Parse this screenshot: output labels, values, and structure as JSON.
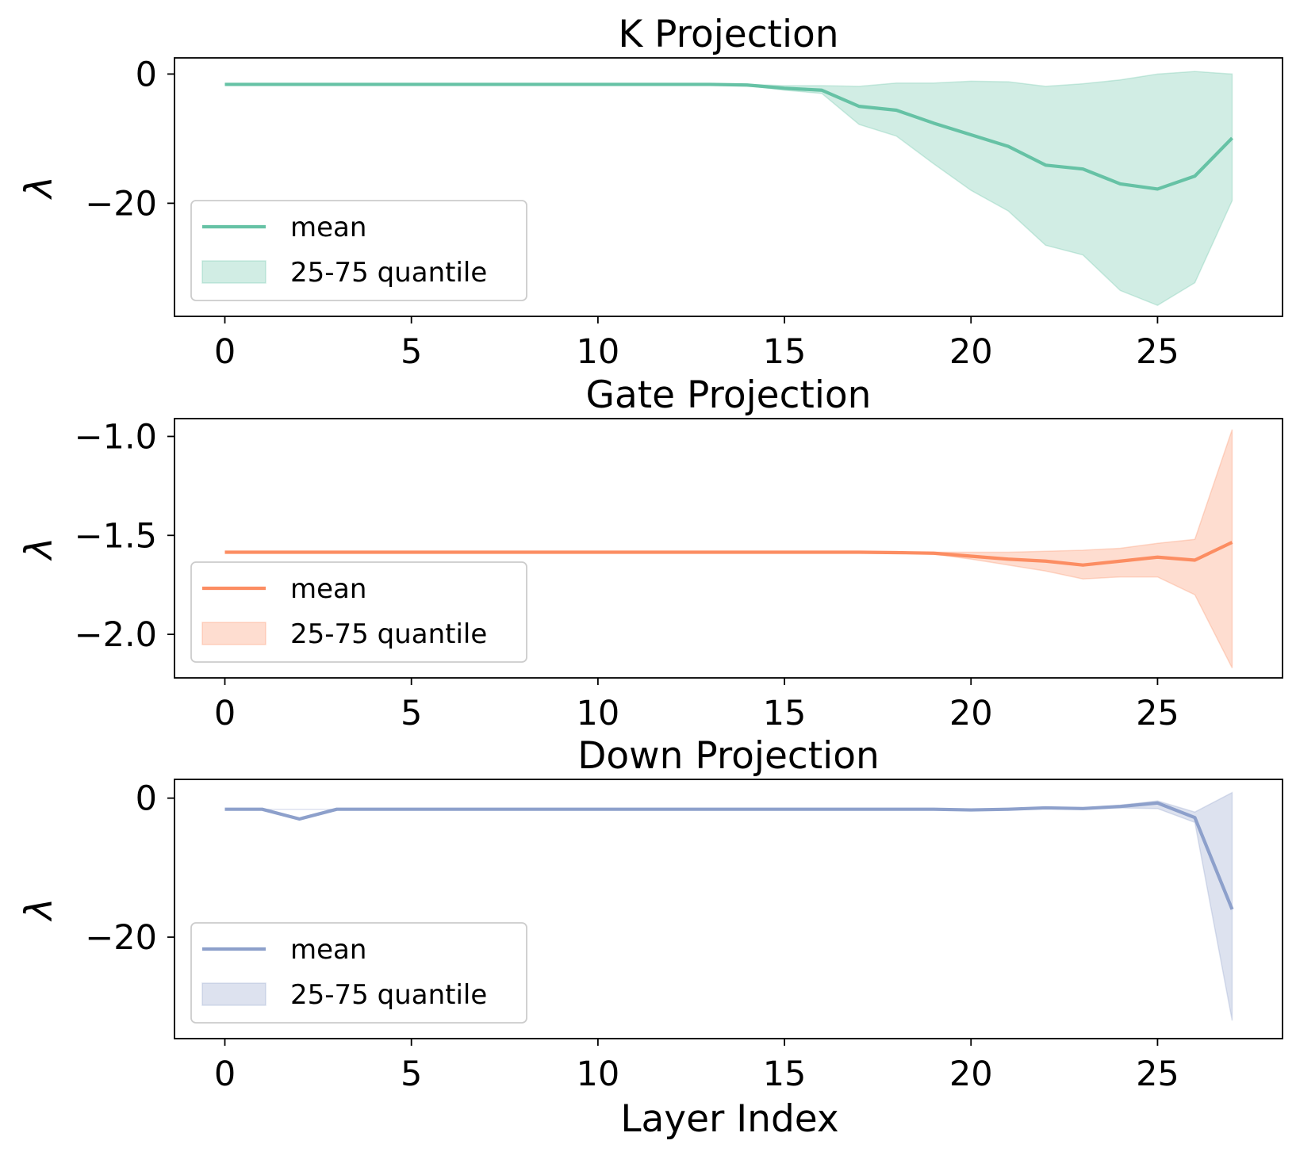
{
  "figure": {
    "xlabel": "Layer Index"
  },
  "chart_data": [
    {
      "type": "line",
      "title": "K Projection",
      "xlabel": "",
      "ylabel": "λ",
      "xlim": [
        -1.35,
        28.35
      ],
      "ylim": [
        -37.5,
        2.5
      ],
      "xticks": [
        0,
        5,
        10,
        15,
        20,
        25
      ],
      "yticks": [
        0,
        -20
      ],
      "ytick_labels": [
        "0",
        "−20"
      ],
      "color": "#66c2a5",
      "x": [
        0,
        1,
        2,
        3,
        4,
        5,
        6,
        7,
        8,
        9,
        10,
        11,
        12,
        13,
        14,
        15,
        16,
        17,
        18,
        19,
        20,
        21,
        22,
        23,
        24,
        25,
        26,
        27
      ],
      "series": [
        {
          "name": "mean",
          "values": [
            -1.6,
            -1.6,
            -1.6,
            -1.6,
            -1.6,
            -1.6,
            -1.6,
            -1.6,
            -1.6,
            -1.6,
            -1.6,
            -1.6,
            -1.6,
            -1.6,
            -1.7,
            -2.2,
            -2.5,
            -5.0,
            -5.6,
            -7.6,
            -9.4,
            -11.2,
            -14.1,
            -14.7,
            -17.0,
            -17.8,
            -15.8,
            -9.9
          ]
        },
        {
          "name": "25-75 quantile",
          "kind": "band",
          "lower": [
            -1.6,
            -1.6,
            -1.6,
            -1.6,
            -1.6,
            -1.6,
            -1.6,
            -1.6,
            -1.6,
            -1.6,
            -1.6,
            -1.6,
            -1.6,
            -1.6,
            -1.8,
            -2.5,
            -3.0,
            -7.8,
            -9.6,
            -13.9,
            -18.0,
            -21.2,
            -26.5,
            -28.0,
            -33.5,
            -35.8,
            -32.3,
            -19.6
          ],
          "upper": [
            -1.6,
            -1.6,
            -1.6,
            -1.6,
            -1.6,
            -1.6,
            -1.6,
            -1.6,
            -1.6,
            -1.6,
            -1.6,
            -1.6,
            -1.6,
            -1.6,
            -1.6,
            -1.8,
            -1.8,
            -1.9,
            -1.4,
            -1.4,
            -1.1,
            -1.2,
            -1.9,
            -1.5,
            -0.9,
            0.0,
            0.4,
            0.0
          ]
        }
      ],
      "legend": {
        "position": "lower-left",
        "entries": [
          "mean",
          "25-75 quantile"
        ]
      }
    },
    {
      "type": "line",
      "title": "Gate Projection",
      "xlabel": "",
      "ylabel": "λ",
      "xlim": [
        -1.35,
        28.35
      ],
      "ylim": [
        -2.22,
        -0.91
      ],
      "xticks": [
        0,
        5,
        10,
        15,
        20,
        25
      ],
      "yticks": [
        -1.0,
        -1.5,
        -2.0
      ],
      "ytick_labels": [
        "−1.0",
        "−1.5",
        "−2.0"
      ],
      "color": "#fc8d62",
      "x": [
        0,
        1,
        2,
        3,
        4,
        5,
        6,
        7,
        8,
        9,
        10,
        11,
        12,
        13,
        14,
        15,
        16,
        17,
        18,
        19,
        20,
        21,
        22,
        23,
        24,
        25,
        26,
        27
      ],
      "series": [
        {
          "name": "mean",
          "values": [
            -1.585,
            -1.585,
            -1.585,
            -1.585,
            -1.585,
            -1.585,
            -1.585,
            -1.585,
            -1.585,
            -1.585,
            -1.585,
            -1.585,
            -1.585,
            -1.585,
            -1.585,
            -1.585,
            -1.585,
            -1.585,
            -1.587,
            -1.59,
            -1.605,
            -1.62,
            -1.63,
            -1.65,
            -1.63,
            -1.61,
            -1.625,
            -1.535
          ]
        },
        {
          "name": "25-75 quantile",
          "kind": "band",
          "lower": [
            -1.585,
            -1.585,
            -1.585,
            -1.585,
            -1.585,
            -1.585,
            -1.585,
            -1.585,
            -1.585,
            -1.585,
            -1.585,
            -1.585,
            -1.585,
            -1.585,
            -1.585,
            -1.585,
            -1.585,
            -1.585,
            -1.59,
            -1.595,
            -1.62,
            -1.65,
            -1.68,
            -1.72,
            -1.71,
            -1.71,
            -1.8,
            -2.17
          ]
        },
        {
          "name": "25-75 quantile upper",
          "kind": "band-upper",
          "values": [
            -1.585,
            -1.585,
            -1.585,
            -1.585,
            -1.585,
            -1.585,
            -1.585,
            -1.585,
            -1.585,
            -1.585,
            -1.585,
            -1.585,
            -1.585,
            -1.585,
            -1.585,
            -1.585,
            -1.585,
            -1.585,
            -1.585,
            -1.585,
            -1.585,
            -1.585,
            -1.58,
            -1.575,
            -1.565,
            -1.54,
            -1.52,
            -0.965
          ]
        }
      ],
      "legend": {
        "position": "lower-left",
        "entries": [
          "mean",
          "25-75 quantile"
        ]
      }
    },
    {
      "type": "line",
      "title": "Down Projection",
      "xlabel": "Layer Index",
      "ylabel": "λ",
      "xlim": [
        -1.35,
        28.35
      ],
      "ylim": [
        -34.6,
        2.7
      ],
      "xticks": [
        0,
        5,
        10,
        15,
        20,
        25
      ],
      "yticks": [
        0,
        -20
      ],
      "ytick_labels": [
        "0",
        "−20"
      ],
      "color": "#8da0cb",
      "x": [
        0,
        1,
        2,
        3,
        4,
        5,
        6,
        7,
        8,
        9,
        10,
        11,
        12,
        13,
        14,
        15,
        16,
        17,
        18,
        19,
        20,
        21,
        22,
        23,
        24,
        25,
        26,
        27
      ],
      "series": [
        {
          "name": "mean",
          "values": [
            -1.6,
            -1.6,
            -3.0,
            -1.6,
            -1.6,
            -1.6,
            -1.6,
            -1.6,
            -1.6,
            -1.6,
            -1.6,
            -1.6,
            -1.6,
            -1.6,
            -1.6,
            -1.6,
            -1.6,
            -1.6,
            -1.6,
            -1.6,
            -1.7,
            -1.6,
            -1.4,
            -1.5,
            -1.2,
            -0.7,
            -2.8,
            -16.0
          ]
        },
        {
          "name": "25-75 quantile",
          "kind": "band",
          "lower": [
            -1.6,
            -1.6,
            -1.6,
            -1.6,
            -1.6,
            -1.6,
            -1.6,
            -1.6,
            -1.6,
            -1.6,
            -1.6,
            -1.6,
            -1.6,
            -1.6,
            -1.6,
            -1.6,
            -1.6,
            -1.6,
            -1.6,
            -1.6,
            -1.7,
            -1.6,
            -1.5,
            -1.5,
            -1.4,
            -1.5,
            -3.5,
            -32.0
          ]
        },
        {
          "name": "25-75 quantile upper",
          "kind": "band-upper",
          "values": [
            -1.6,
            -1.6,
            -1.6,
            -1.6,
            -1.6,
            -1.6,
            -1.6,
            -1.6,
            -1.6,
            -1.6,
            -1.6,
            -1.6,
            -1.6,
            -1.6,
            -1.6,
            -1.6,
            -1.6,
            -1.6,
            -1.6,
            -1.6,
            -1.6,
            -1.6,
            -1.3,
            -1.4,
            -1.0,
            -0.4,
            -2.0,
            0.8
          ]
        }
      ],
      "legend": {
        "position": "lower-left",
        "entries": [
          "mean",
          "25-75 quantile"
        ]
      }
    }
  ]
}
